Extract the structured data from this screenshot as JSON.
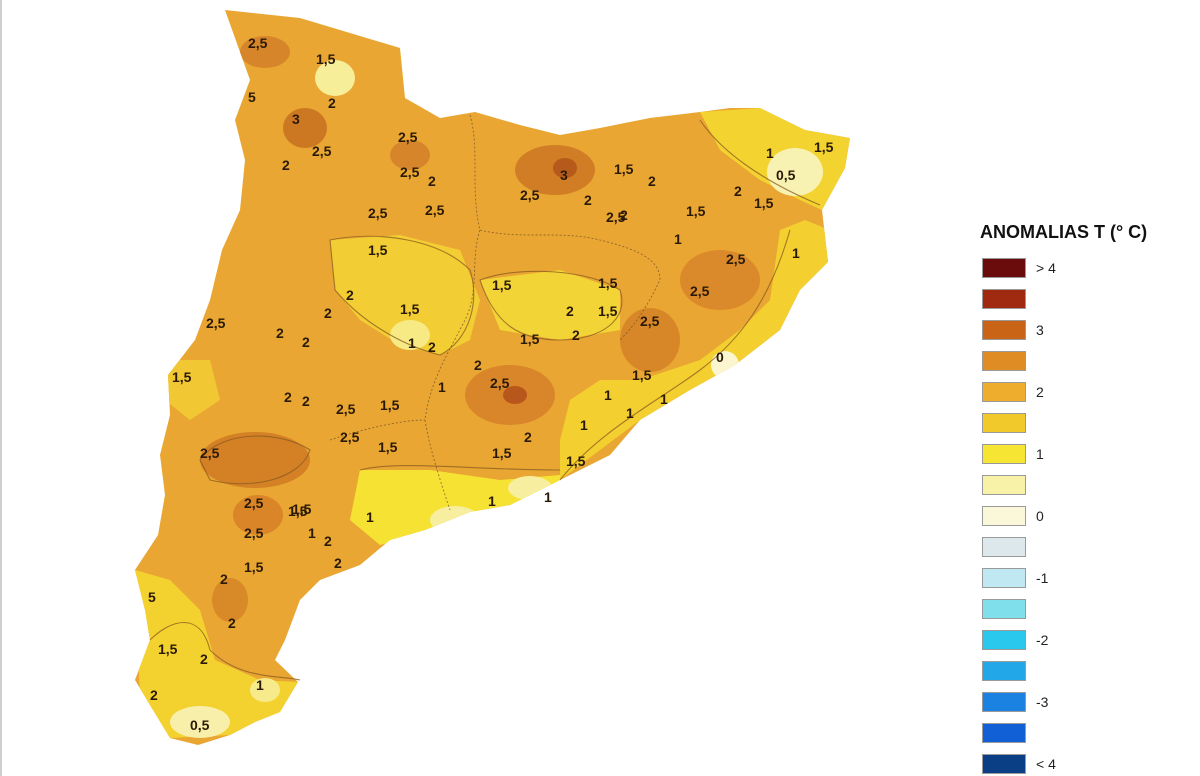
{
  "legend": {
    "title": "ANOMALIAS T (° C)",
    "items": [
      {
        "label": "> 4",
        "color": "#6b0c0c"
      },
      {
        "label": "",
        "color": "#a02a10"
      },
      {
        "label": "3",
        "color": "#c96316"
      },
      {
        "label": "",
        "color": "#df8c24"
      },
      {
        "label": "2",
        "color": "#efad2e"
      },
      {
        "label": "",
        "color": "#f2c92a"
      },
      {
        "label": "1",
        "color": "#f6e633"
      },
      {
        "label": "",
        "color": "#f7f2a8"
      },
      {
        "label": "0",
        "color": "#fbf8d9"
      },
      {
        "label": "",
        "color": "#dce8ec"
      },
      {
        "label": "-1",
        "color": "#bfe8f2"
      },
      {
        "label": "",
        "color": "#7fe0ec"
      },
      {
        "label": "-2",
        "color": "#2ac8ec"
      },
      {
        "label": "",
        "color": "#22a8e8"
      },
      {
        "label": "-3",
        "color": "#1c82e2"
      },
      {
        "label": "",
        "color": "#1260d6"
      },
      {
        "label": "< 4",
        "color": "#0a3f86"
      }
    ]
  },
  "map": {
    "contour_labels": [
      "2,5",
      "1,5",
      "5",
      "2",
      "3",
      "2,5",
      "2",
      "2,5",
      "2,5",
      "2",
      "2,5",
      "2,5",
      "1,5",
      "2,5",
      "3",
      "2",
      "2,5",
      "1,5",
      "2",
      "1,5",
      "1",
      "0,5",
      "1,5",
      "1,5",
      "2",
      "2,5",
      "1",
      "1",
      "2,5",
      "1,5",
      "2",
      "1,5",
      "1,5",
      "2",
      "2",
      "2",
      "1,5",
      "1",
      "2",
      "2,5",
      "1,5",
      "1,5",
      "2",
      "2,5",
      "2",
      "2",
      "1",
      "2,5",
      "1,5",
      "2,5",
      "0",
      "1,5",
      "2",
      "2",
      "2,5",
      "1,5",
      "1",
      "1",
      "1",
      "2,5",
      "2",
      "1,5",
      "1,5",
      "1",
      "1",
      "2,5",
      "1,5",
      "1",
      "2",
      "2,5",
      "2",
      "1,5",
      "1",
      "1",
      "2",
      "2",
      "1,5",
      "2",
      "2",
      "5",
      "1,5",
      "2",
      "1",
      "0,5"
    ]
  }
}
